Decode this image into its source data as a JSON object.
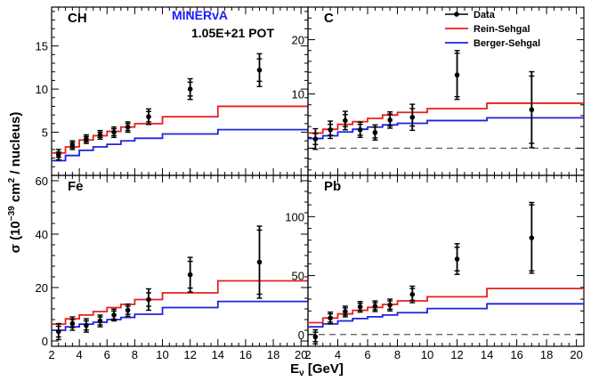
{
  "figure": {
    "experiment": "MINERvA",
    "pot": "1.05E+21 POT",
    "xlabel": "E",
    "xlabel_sub": "ν",
    "xlabel_unit": " [GeV]",
    "ylabel_pre": "σ (10",
    "ylabel_exp": "−39",
    "ylabel_mid": " cm",
    "ylabel_sq": "2",
    "ylabel_post": " / nucleus)"
  },
  "legend": {
    "position": "top-right",
    "items": [
      {
        "label": "Data",
        "style": "marker",
        "color": "#000000"
      },
      {
        "label": "Rein-Sehgal",
        "style": "line",
        "color": "#e8201c"
      },
      {
        "label": "Berger-Sehgal",
        "style": "line",
        "color": "#2020e0"
      }
    ]
  },
  "chart_data": [
    {
      "type": "line",
      "panel": "CH",
      "title": "CH",
      "xlim": [
        2,
        20.5
      ],
      "ylim": [
        0,
        19.5
      ],
      "x_ticks": [
        2,
        4,
        6,
        8,
        10,
        12,
        14,
        16,
        18,
        20
      ],
      "y_ticks": [
        5,
        10,
        15
      ],
      "grid": false,
      "bin_edges": [
        2,
        3,
        4,
        5,
        6,
        7,
        8,
        10,
        14,
        20.5
      ],
      "series": [
        {
          "name": "Rein-Sehgal",
          "color": "#e8201c",
          "values": [
            2.6,
            3.3,
            4.1,
            4.6,
            5.1,
            5.6,
            6.0,
            6.8,
            8.0
          ]
        },
        {
          "name": "Berger-Sehgal",
          "color": "#2020e0",
          "values": [
            1.7,
            2.3,
            2.9,
            3.3,
            3.6,
            4.0,
            4.3,
            4.8,
            5.3
          ]
        }
      ],
      "data": {
        "name": "Data",
        "x": [
          2.5,
          3.5,
          4.5,
          5.5,
          6.5,
          7.5,
          9,
          12,
          17
        ],
        "y": [
          2.4,
          3.5,
          4.2,
          4.7,
          5.0,
          5.6,
          6.8,
          10.0,
          12.2
        ],
        "err_stat": [
          0.3,
          0.3,
          0.3,
          0.3,
          0.4,
          0.4,
          0.6,
          0.8,
          1.3
        ],
        "err_tot": [
          0.6,
          0.5,
          0.5,
          0.5,
          0.6,
          0.6,
          0.9,
          1.2,
          1.9
        ]
      }
    },
    {
      "type": "line",
      "panel": "C",
      "title": "C",
      "xlim": [
        2,
        20.5
      ],
      "ylim": [
        -5,
        26
      ],
      "x_ticks": [
        2,
        4,
        6,
        8,
        10,
        12,
        14,
        16,
        18,
        20
      ],
      "y_ticks": [
        10,
        20
      ],
      "grid": false,
      "zero_line": true,
      "bin_edges": [
        2,
        3,
        4,
        5,
        6,
        7,
        8,
        10,
        14,
        20.5
      ],
      "series": [
        {
          "name": "Rein-Sehgal",
          "color": "#e8201c",
          "values": [
            2.8,
            3.5,
            4.4,
            4.9,
            5.5,
            6.1,
            6.6,
            7.3,
            8.3
          ]
        },
        {
          "name": "Berger-Sehgal",
          "color": "#2020e0",
          "values": [
            1.8,
            2.3,
            3.0,
            3.5,
            3.9,
            4.3,
            4.6,
            5.1,
            5.6
          ]
        }
      ],
      "data": {
        "name": "Data",
        "x": [
          2.5,
          3.5,
          4.5,
          5.5,
          6.5,
          7.5,
          9,
          12,
          17
        ],
        "y": [
          1.7,
          3.4,
          5.1,
          3.4,
          2.9,
          5.2,
          5.7,
          13.5,
          7.1
        ],
        "err_stat": [
          1.0,
          1.0,
          1.1,
          1.0,
          1.0,
          1.1,
          1.6,
          4.0,
          6.2
        ],
        "err_tot": [
          1.9,
          1.6,
          1.7,
          1.4,
          1.4,
          1.5,
          2.4,
          4.5,
          7.0
        ]
      }
    },
    {
      "type": "line",
      "panel": "Fe",
      "title": "Fe",
      "xlim": [
        2,
        20.5
      ],
      "ylim": [
        -2,
        62
      ],
      "x_ticks": [
        2,
        4,
        6,
        8,
        10,
        12,
        14,
        16,
        18,
        20
      ],
      "y_ticks": [
        0,
        20,
        40,
        60
      ],
      "grid": false,
      "bin_edges": [
        2,
        3,
        4,
        5,
        6,
        7,
        8,
        10,
        14,
        20.5
      ],
      "series": [
        {
          "name": "Rein-Sehgal",
          "color": "#e8201c",
          "values": [
            6.3,
            8.3,
            9.7,
            11.0,
            12.5,
            13.7,
            15.5,
            18.0,
            22.5
          ]
        },
        {
          "name": "Berger-Sehgal",
          "color": "#2020e0",
          "values": [
            4.0,
            5.3,
            6.3,
            7.0,
            8.0,
            8.8,
            10.0,
            12.5,
            14.8
          ]
        }
      ],
      "data": {
        "name": "Data",
        "x": [
          2.5,
          3.5,
          4.5,
          5.5,
          6.5,
          7.5,
          9,
          12,
          17
        ],
        "y": [
          3.5,
          6.5,
          5.8,
          7.5,
          9.7,
          11.5,
          15.5,
          24.8,
          29.5
        ],
        "err_stat": [
          2.0,
          1.5,
          1.7,
          1.5,
          1.5,
          1.5,
          2.5,
          5.0,
          12.0
        ],
        "err_tot": [
          3.0,
          2.5,
          2.5,
          2.2,
          2.2,
          2.3,
          4.0,
          6.5,
          13.5
        ]
      }
    },
    {
      "type": "line",
      "panel": "Pb",
      "title": "Pb",
      "xlim": [
        2,
        20.5
      ],
      "ylim": [
        -10,
        135
      ],
      "x_ticks": [
        2,
        4,
        6,
        8,
        10,
        12,
        14,
        16,
        18,
        20
      ],
      "y_ticks": [
        0,
        50,
        100
      ],
      "grid": false,
      "zero_line": true,
      "bin_edges": [
        2,
        3,
        4,
        5,
        6,
        7,
        8,
        10,
        14,
        20.5
      ],
      "series": [
        {
          "name": "Rein-Sehgal",
          "color": "#e8201c",
          "values": [
            10.0,
            14.0,
            17.5,
            20.5,
            23.0,
            25.5,
            28.5,
            32.0,
            39.0
          ]
        },
        {
          "name": "Berger-Sehgal",
          "color": "#2020e0",
          "values": [
            6.5,
            9.0,
            11.5,
            13.5,
            15.0,
            16.5,
            18.5,
            22.0,
            26.0
          ]
        }
      ],
      "data": {
        "name": "Data",
        "x": [
          2.5,
          3.5,
          4.5,
          5.5,
          6.5,
          7.5,
          9,
          12,
          17
        ],
        "y": [
          -2.0,
          14.0,
          19.5,
          23.5,
          24.0,
          25.0,
          34.0,
          64.0,
          82.0
        ],
        "err_stat": [
          4.0,
          3.5,
          3.0,
          3.0,
          3.0,
          3.5,
          5.0,
          10.0,
          28.0
        ],
        "err_tot": [
          6.0,
          5.0,
          4.5,
          4.5,
          4.5,
          5.0,
          7.0,
          13.0,
          30.0
        ]
      }
    }
  ]
}
